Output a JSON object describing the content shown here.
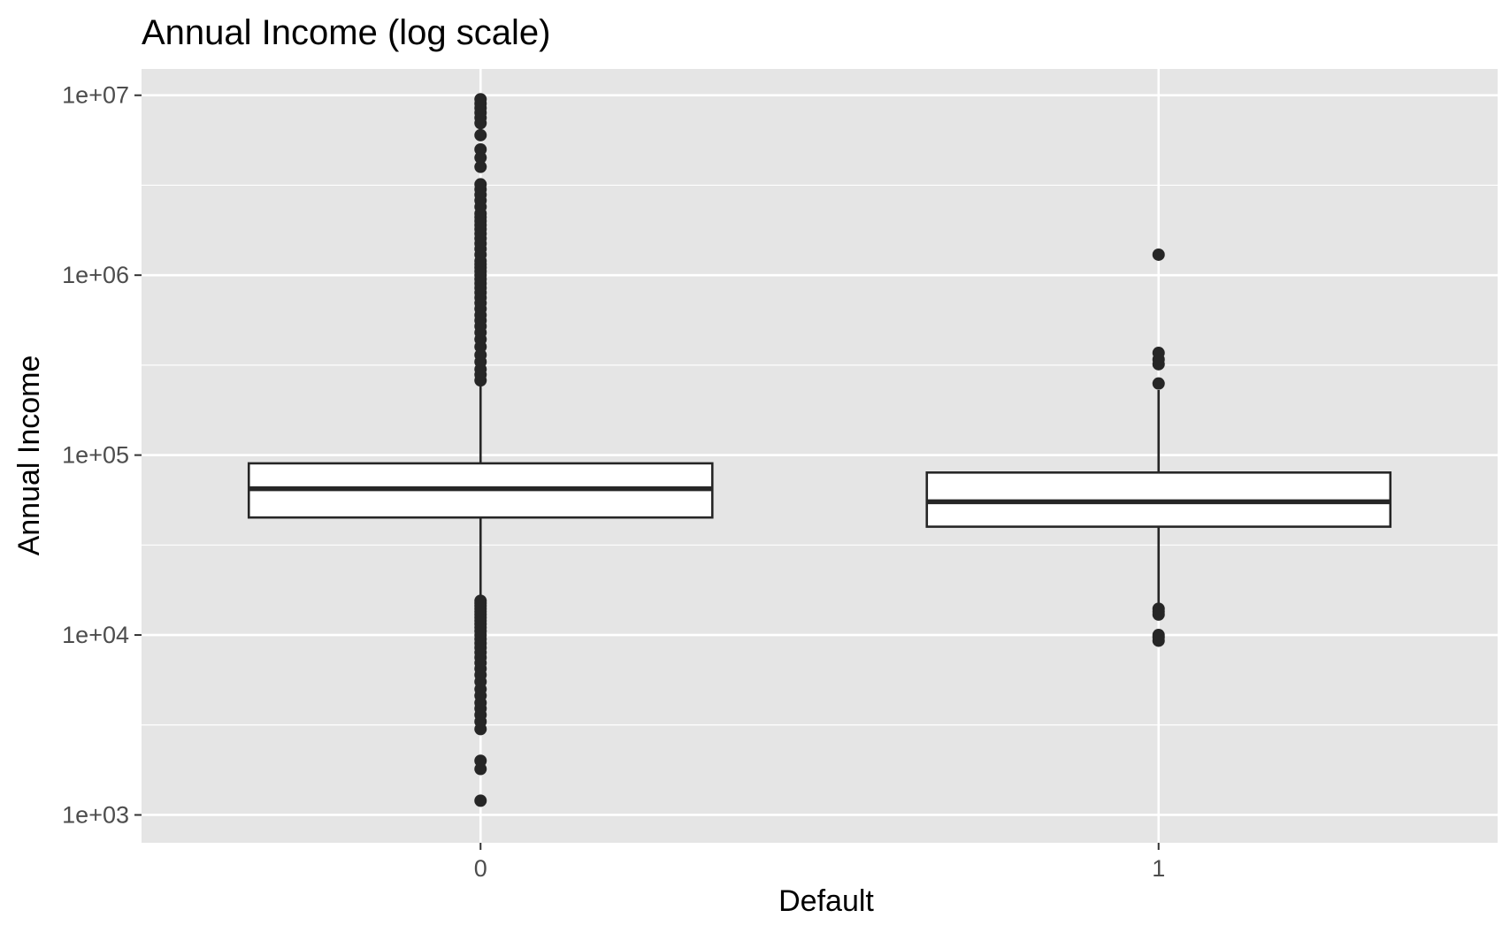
{
  "chart_data": {
    "type": "boxplot",
    "title": "Annual Income (log scale)",
    "xlabel": "Default",
    "ylabel": "Annual Income",
    "y_scale": "log10",
    "ylim": [
      700,
      14000000
    ],
    "y_ticks": [
      1000,
      10000,
      100000,
      1000000,
      10000000
    ],
    "y_tick_labels": [
      "1e+03",
      "1e+04",
      "1e+05",
      "1e+06",
      "1e+07"
    ],
    "categories": [
      "0",
      "1"
    ],
    "grid": true,
    "legend": "none",
    "colors": {
      "panel": "#e5e5e5",
      "grid": "#ffffff",
      "box_fill": "#ffffff",
      "box_stroke": "#262626",
      "point": "#262626",
      "tick_label": "#4d4d4d"
    },
    "boxes": [
      {
        "category": "0",
        "q1": 45000,
        "median": 65000,
        "q3": 90000,
        "whisker_low": 16000,
        "whisker_high": 250000,
        "outliers": [
          1200,
          1800,
          2000,
          3000,
          3300,
          3600,
          3900,
          4200,
          4600,
          5000,
          5500,
          6000,
          6500,
          7000,
          7500,
          8000,
          8500,
          9000,
          9500,
          10000,
          10500,
          11000,
          11500,
          12000,
          12500,
          13000,
          13500,
          14000,
          14500,
          15000,
          15500,
          260000,
          280000,
          300000,
          330000,
          360000,
          400000,
          440000,
          480000,
          520000,
          560000,
          600000,
          650000,
          700000,
          750000,
          800000,
          850000,
          900000,
          950000,
          1000000,
          1050000,
          1100000,
          1150000,
          1200000,
          1300000,
          1400000,
          1500000,
          1600000,
          1700000,
          1800000,
          1900000,
          2000000,
          2100000,
          2200000,
          2400000,
          2600000,
          2800000,
          3000000,
          3200000,
          4000000,
          4500000,
          5000000,
          6000000,
          7000000,
          7500000,
          8000000,
          8500000,
          9000000,
          9500000
        ]
      },
      {
        "category": "1",
        "q1": 40000,
        "median": 55000,
        "q3": 80000,
        "whisker_low": 14000,
        "whisker_high": 230000,
        "outliers": [
          9300,
          9700,
          10000,
          13000,
          13500,
          14000,
          250000,
          320000,
          340000,
          370000,
          1300000
        ]
      }
    ]
  }
}
